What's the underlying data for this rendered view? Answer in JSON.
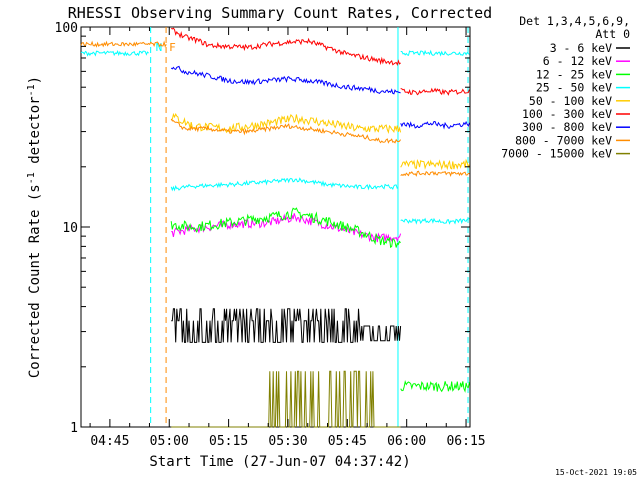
{
  "chart_data": {
    "type": "line",
    "title": "RHESSI Observing Summary Count Rates, Corrected",
    "xlabel": "Start Time (27-Jun-07 04:37:42)",
    "ylabel": "Corrected Count Rate (s⁻¹ detector⁻¹)",
    "yscale": "log",
    "ylim": [
      1,
      100
    ],
    "xlim_minutes": [
      37.7,
      136
    ],
    "x_ticks": [
      {
        "minute": 45,
        "label": "04:45"
      },
      {
        "minute": 60,
        "label": "05:00"
      },
      {
        "minute": 75,
        "label": "05:15"
      },
      {
        "minute": 90,
        "label": "05:30"
      },
      {
        "minute": 105,
        "label": "05:45"
      },
      {
        "minute": 120,
        "label": "06:00"
      },
      {
        "minute": 135,
        "label": "06:15"
      }
    ],
    "y_ticks": [
      {
        "value": 1,
        "label": "1"
      },
      {
        "value": 10,
        "label": "10"
      },
      {
        "value": 100,
        "label": "100"
      }
    ],
    "legend": {
      "placement": "right",
      "header": [
        "Det 1,3,4,5,6,9,",
        "Att 0"
      ]
    },
    "markers": [
      {
        "type": "dashed",
        "minute": 55.3,
        "color": "#00ffff"
      },
      {
        "type": "dashed",
        "minute": 59.2,
        "color": "#ff8c00"
      },
      {
        "type": "solid",
        "minute": 117.8,
        "color": "#00ffff"
      },
      {
        "type": "dashed",
        "minute": 135.5,
        "color": "#00ffff"
      }
    ],
    "marker_labels": [
      {
        "text": "N",
        "color": "#00ffff"
      },
      {
        "text": "F",
        "color": "#ff8c00"
      }
    ],
    "series": [
      {
        "name": "3 - 6 keV",
        "color": "#000000",
        "noise": 0.18,
        "segments": [
          {
            "x": [
              60.5,
              66,
              75,
              85,
              95,
              105,
              108,
              113,
              118.5
            ],
            "y": [
              3.1,
              3.0,
              3.2,
              3.1,
              3.2,
              3.0,
              2.8,
              2.8,
              2.9
            ]
          }
        ]
      },
      {
        "name": "6 - 12 keV",
        "color": "#ff00ff",
        "noise": 0.05,
        "segments": [
          {
            "x": [
              60.5,
              66,
              75,
              85,
              92,
              100,
              108,
              113,
              118.5
            ],
            "y": [
              9.3,
              9.8,
              10.3,
              10.5,
              11.2,
              10.2,
              9.2,
              8.8,
              9.0
            ]
          }
        ]
      },
      {
        "name": "12 - 25 keV",
        "color": "#00ff00",
        "noise": 0.06,
        "segments": [
          {
            "x": [
              60.5,
              66,
              75,
              85,
              92,
              100,
              108,
              113,
              118.5
            ],
            "y": [
              10.3,
              10.0,
              10.5,
              11.2,
              11.8,
              10.7,
              9.5,
              8.6,
              8.2
            ]
          },
          {
            "x": [
              118.5,
              119,
              122,
              126,
              130,
              136
            ],
            "y": [
              1.6,
              1.6,
              1.6,
              1.6,
              1.6,
              1.6
            ]
          }
        ]
      },
      {
        "name": "25 - 50 keV",
        "color": "#00ffff",
        "noise": 0.025,
        "segments": [
          {
            "x": [
              37.7,
              46,
              55
            ],
            "y": [
              74,
              74,
              74
            ]
          },
          {
            "x": [
              60.5,
              66,
              75,
              85,
              92,
              100,
              108,
              113,
              117.8
            ],
            "y": [
              15.5,
              16.0,
              16.3,
              16.8,
              17.3,
              16.3,
              15.8,
              16.0,
              15.8
            ]
          },
          {
            "x": [
              118.5,
              122,
              126,
              130,
              136
            ],
            "y": [
              10.8,
              10.7,
              10.8,
              10.6,
              10.8
            ]
          },
          {
            "x": [
              118.5,
              127,
              136
            ],
            "y": [
              74,
              74,
              74
            ]
          }
        ]
      },
      {
        "name": "50 - 100 keV",
        "color": "#ffcc00",
        "noise": 0.05,
        "segments": [
          {
            "x": [
              60.5,
              66,
              75,
              85,
              92,
              100,
              108,
              113,
              118.5
            ],
            "y": [
              36,
              32,
              31,
              33,
              35,
              33,
              31,
              31,
              31
            ]
          },
          {
            "x": [
              118.5,
              122,
              126,
              130,
              136
            ],
            "y": [
              20.5,
              20.5,
              20.5,
              20.5,
              20.5
            ]
          }
        ]
      },
      {
        "name": "100 - 300 keV",
        "color": "#ff0000",
        "noise": 0.03,
        "segments": [
          {
            "x": [
              60.5,
              64,
              67,
              70,
              75,
              80,
              85,
              90,
              95,
              100,
              105,
              110,
              113,
              118.5
            ],
            "y": [
              97,
              89,
              86,
              81,
              80,
              79,
              82,
              84,
              85,
              79,
              73,
              70,
              68,
              66
            ]
          },
          {
            "x": [
              118.5,
              122,
              126,
              130,
              136
            ],
            "y": [
              48,
              47,
              48,
              47,
              48
            ]
          }
        ]
      },
      {
        "name": "300 - 800 keV",
        "color": "#0000ff",
        "noise": 0.03,
        "segments": [
          {
            "x": [
              60.5,
              64,
              70,
              75,
              80,
              85,
              90,
              95,
              100,
              105,
              110,
              113,
              118.5
            ],
            "y": [
              64,
              60,
              57,
              54,
              53,
              54,
              55,
              54,
              52,
              50,
              49,
              48,
              47
            ]
          },
          {
            "x": [
              118.5,
              122,
              126,
              130,
              136
            ],
            "y": [
              33,
              32,
              33,
              32,
              33
            ]
          }
        ]
      },
      {
        "name": "800 - 7000 keV",
        "color": "#ff8c00",
        "noise": 0.025,
        "segments": [
          {
            "x": [
              37.7,
              46,
              59.3
            ],
            "y": [
              82,
              82,
              82
            ]
          },
          {
            "x": [
              60.5,
              64,
              70,
              75,
              80,
              85,
              90,
              95,
              100,
              105,
              110,
              113,
              118.5
            ],
            "y": [
              34,
              31,
              31,
              30,
              30,
              31,
              32,
              31,
              30,
              29,
              28,
              27,
              27
            ]
          },
          {
            "x": [
              118.5,
              122,
              126,
              130,
              136
            ],
            "y": [
              18.5,
              18.5,
              18.7,
              18.5,
              18.5
            ]
          }
        ]
      },
      {
        "name": "7000 - 15000 keV",
        "color": "#808000",
        "noise": 0.0,
        "segments": [
          {
            "x": [
              60.5,
              66,
              75,
              85,
              95,
              105,
              110,
              113,
              118.5
            ],
            "y": [
              1.0,
              1.02,
              1.0,
              1.05,
              1.03,
              1.0,
              1.02,
              1.0,
              1.0
            ]
          }
        ]
      }
    ]
  },
  "footer": {
    "timestamp": "15-Oct-2021 19:05"
  }
}
